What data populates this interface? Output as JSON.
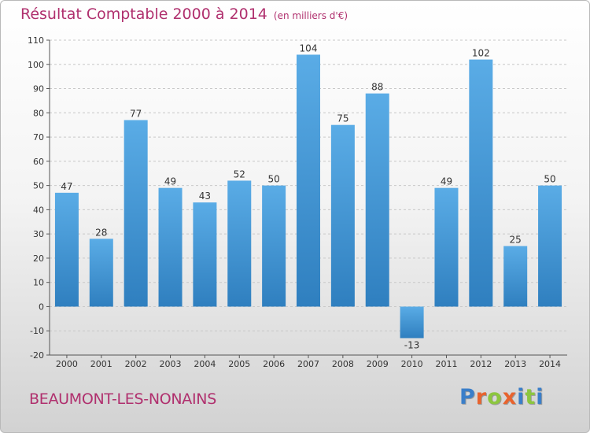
{
  "title": "Résultat Comptable 2000 à 2014",
  "subtitle": "(en milliers d'€)",
  "commune": "BEAUMONT-LES-NONAINS",
  "logo": {
    "text": "Proxiti",
    "letter_colors": [
      "#3a7ec9",
      "#e8632e",
      "#8cc63f",
      "#e8632e",
      "#3a7ec9",
      "#8cc63f",
      "#3a7ec9"
    ]
  },
  "colors": {
    "title": "#b0306e",
    "bar_light": "#5aace6",
    "bar_dark": "#2f7fbf"
  },
  "chart_data": {
    "type": "bar",
    "categories": [
      "2000",
      "2001",
      "2002",
      "2003",
      "2004",
      "2005",
      "2006",
      "2007",
      "2008",
      "2009",
      "2010",
      "2011",
      "2012",
      "2013",
      "2014"
    ],
    "values": [
      47,
      28,
      77,
      49,
      43,
      52,
      50,
      104,
      75,
      88,
      -13,
      49,
      102,
      25,
      50
    ],
    "data_labels": [
      "47",
      "28",
      "77",
      "49",
      "43",
      "52",
      "50",
      "104",
      "75",
      "88",
      "-13",
      "49",
      "102",
      "25",
      "50"
    ],
    "yticks": [
      "110",
      "100",
      "90",
      "80",
      "70",
      "60",
      "50",
      "40",
      "30",
      "20",
      "10",
      "0",
      "-10",
      "-20"
    ],
    "ylim": [
      -20,
      110
    ],
    "grid": "horizontal dashed",
    "legend": "none"
  }
}
